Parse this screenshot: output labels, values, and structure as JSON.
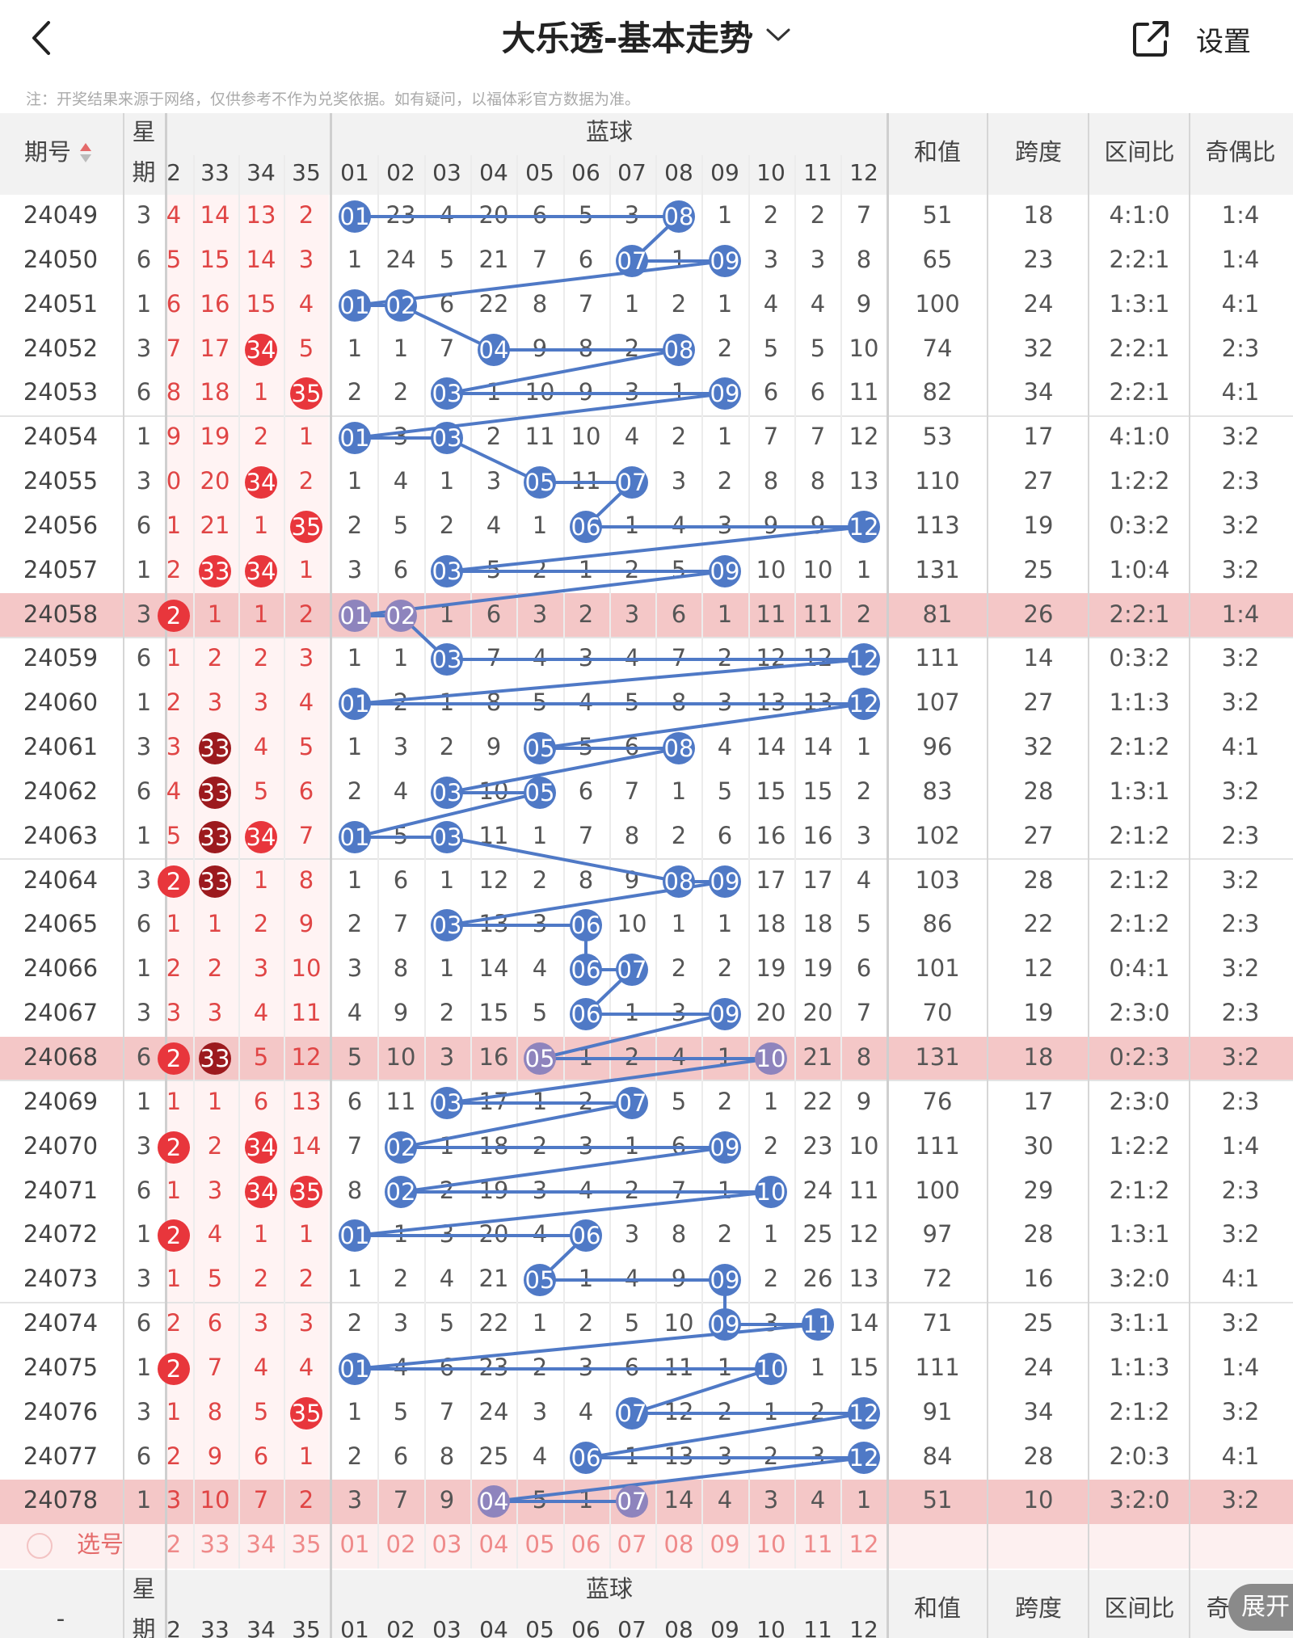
{
  "header": {
    "back_label": "back",
    "title": "大乐透-基本走势",
    "share_icon": "share-icon",
    "settings_label": "设置"
  },
  "notice": "注：开奖结果来源于网络，仅供参考不作为兑奖依据。如有疑问，以福体彩官方数据为准。",
  "table_header": {
    "issue": "期号",
    "week": [
      "星",
      "期"
    ],
    "blue_group": "蓝球",
    "front_cols": [
      "2",
      "33",
      "34",
      "35"
    ],
    "blue_cols": [
      "01",
      "02",
      "03",
      "04",
      "05",
      "06",
      "07",
      "08",
      "09",
      "10",
      "11",
      "12"
    ],
    "sum": "和值",
    "span": "跨度",
    "zone_ratio": "区间比",
    "odd_even": "奇偶比"
  },
  "colors": {
    "red_ball": "#e8363c",
    "dark_red_ball": "#9c1a1e",
    "blue_ball": "#4f79c6",
    "highlight_row": "#f3c4c4",
    "line": "#4f79c6"
  },
  "rows": [
    {
      "issue": "24049",
      "week": "3",
      "front": [
        "4",
        "14",
        "13",
        "2"
      ],
      "fhit": [],
      "blue": [
        "01",
        "23",
        "4",
        "20",
        "6",
        "5",
        "3",
        "08",
        "1",
        "2",
        "2",
        "7"
      ],
      "bhit": [
        0,
        7
      ],
      "sum": "51",
      "span": "18",
      "zone": "4:1:0",
      "oe": "1:4",
      "hl": false
    },
    {
      "issue": "24050",
      "week": "6",
      "front": [
        "5",
        "15",
        "14",
        "3"
      ],
      "fhit": [],
      "blue": [
        "1",
        "24",
        "5",
        "21",
        "7",
        "6",
        "07",
        "1",
        "09",
        "3",
        "3",
        "8"
      ],
      "bhit": [
        6,
        8
      ],
      "sum": "65",
      "span": "23",
      "zone": "2:2:1",
      "oe": "1:4",
      "hl": false
    },
    {
      "issue": "24051",
      "week": "1",
      "front": [
        "6",
        "16",
        "15",
        "4"
      ],
      "fhit": [],
      "blue": [
        "01",
        "02",
        "6",
        "22",
        "8",
        "7",
        "1",
        "2",
        "1",
        "4",
        "4",
        "9"
      ],
      "bhit": [
        0,
        1
      ],
      "sum": "100",
      "span": "24",
      "zone": "1:3:1",
      "oe": "4:1",
      "hl": false
    },
    {
      "issue": "24052",
      "week": "3",
      "front": [
        "7",
        "17",
        "34",
        "5"
      ],
      "fhit": [
        2
      ],
      "blue": [
        "1",
        "1",
        "7",
        "04",
        "9",
        "8",
        "2",
        "08",
        "2",
        "5",
        "5",
        "10"
      ],
      "bhit": [
        3,
        7
      ],
      "sum": "74",
      "span": "32",
      "zone": "2:2:1",
      "oe": "2:3",
      "hl": false
    },
    {
      "issue": "24053",
      "week": "6",
      "front": [
        "8",
        "18",
        "1",
        "35"
      ],
      "fhit": [
        3
      ],
      "blue": [
        "2",
        "2",
        "03",
        "1",
        "10",
        "9",
        "3",
        "1",
        "09",
        "6",
        "6",
        "11"
      ],
      "bhit": [
        2,
        8
      ],
      "sum": "82",
      "span": "34",
      "zone": "2:2:1",
      "oe": "4:1",
      "hl": false
    },
    {
      "issue": "24054",
      "week": "1",
      "front": [
        "9",
        "19",
        "2",
        "1"
      ],
      "fhit": [],
      "blue": [
        "01",
        "3",
        "03",
        "2",
        "11",
        "10",
        "4",
        "2",
        "1",
        "7",
        "7",
        "12"
      ],
      "bhit": [
        0,
        2
      ],
      "sum": "53",
      "span": "17",
      "zone": "4:1:0",
      "oe": "3:2",
      "hl": false
    },
    {
      "issue": "24055",
      "week": "3",
      "front": [
        "0",
        "20",
        "34",
        "2"
      ],
      "fhit": [
        2
      ],
      "blue": [
        "1",
        "4",
        "1",
        "3",
        "05",
        "11",
        "07",
        "3",
        "2",
        "8",
        "8",
        "13"
      ],
      "bhit": [
        4,
        6
      ],
      "sum": "110",
      "span": "27",
      "zone": "1:2:2",
      "oe": "2:3",
      "hl": false
    },
    {
      "issue": "24056",
      "week": "6",
      "front": [
        "1",
        "21",
        "1",
        "35"
      ],
      "fhit": [
        3
      ],
      "blue": [
        "2",
        "5",
        "2",
        "4",
        "1",
        "06",
        "1",
        "4",
        "3",
        "9",
        "9",
        "12"
      ],
      "bhit": [
        5,
        11
      ],
      "sum": "113",
      "span": "19",
      "zone": "0:3:2",
      "oe": "3:2",
      "hl": false
    },
    {
      "issue": "24057",
      "week": "1",
      "front": [
        "2",
        "33",
        "34",
        "1"
      ],
      "fhit": [
        1,
        2
      ],
      "blue": [
        "3",
        "6",
        "03",
        "5",
        "2",
        "1",
        "2",
        "5",
        "09",
        "10",
        "10",
        "1"
      ],
      "bhit": [
        2,
        8
      ],
      "sum": "131",
      "span": "25",
      "zone": "1:0:4",
      "oe": "3:2",
      "hl": false
    },
    {
      "issue": "24058",
      "week": "3",
      "front": [
        "2",
        "1",
        "1",
        "2"
      ],
      "fhit": [
        0
      ],
      "blue": [
        "01",
        "02",
        "1",
        "6",
        "3",
        "2",
        "3",
        "6",
        "1",
        "11",
        "11",
        "2"
      ],
      "bhit": [
        0,
        1
      ],
      "sum": "81",
      "span": "26",
      "zone": "2:2:1",
      "oe": "1:4",
      "hl": true
    },
    {
      "issue": "24059",
      "week": "6",
      "front": [
        "1",
        "2",
        "2",
        "3"
      ],
      "fhit": [],
      "blue": [
        "1",
        "1",
        "03",
        "7",
        "4",
        "3",
        "4",
        "7",
        "2",
        "12",
        "12",
        "12"
      ],
      "bhit": [
        2,
        11
      ],
      "sum": "111",
      "span": "14",
      "zone": "0:3:2",
      "oe": "3:2",
      "hl": false
    },
    {
      "issue": "24060",
      "week": "1",
      "front": [
        "2",
        "3",
        "3",
        "4"
      ],
      "fhit": [],
      "blue": [
        "01",
        "2",
        "1",
        "8",
        "5",
        "4",
        "5",
        "8",
        "3",
        "13",
        "13",
        "12"
      ],
      "bhit": [
        0,
        11
      ],
      "sum": "107",
      "span": "27",
      "zone": "1:1:3",
      "oe": "3:2",
      "hl": false
    },
    {
      "issue": "24061",
      "week": "3",
      "front": [
        "3",
        "33",
        "4",
        "5"
      ],
      "fhit": [
        1
      ],
      "fdark": [
        1
      ],
      "blue": [
        "1",
        "3",
        "2",
        "9",
        "05",
        "5",
        "6",
        "08",
        "4",
        "14",
        "14",
        "1"
      ],
      "bhit": [
        4,
        7
      ],
      "sum": "96",
      "span": "32",
      "zone": "2:1:2",
      "oe": "4:1",
      "hl": false
    },
    {
      "issue": "24062",
      "week": "6",
      "front": [
        "4",
        "33",
        "5",
        "6"
      ],
      "fhit": [
        1
      ],
      "fdark": [
        1
      ],
      "blue": [
        "2",
        "4",
        "03",
        "10",
        "05",
        "6",
        "7",
        "1",
        "5",
        "15",
        "15",
        "2"
      ],
      "bhit": [
        2,
        4
      ],
      "sum": "83",
      "span": "28",
      "zone": "1:3:1",
      "oe": "3:2",
      "hl": false
    },
    {
      "issue": "24063",
      "week": "1",
      "front": [
        "5",
        "33",
        "34",
        "7"
      ],
      "fhit": [
        1,
        2
      ],
      "fdark": [
        1
      ],
      "blue": [
        "01",
        "5",
        "03",
        "11",
        "1",
        "7",
        "8",
        "2",
        "6",
        "16",
        "16",
        "3"
      ],
      "bhit": [
        0,
        2
      ],
      "sum": "102",
      "span": "27",
      "zone": "2:1:2",
      "oe": "2:3",
      "hl": false
    },
    {
      "issue": "24064",
      "week": "3",
      "front": [
        "2",
        "33",
        "1",
        "8"
      ],
      "fhit": [
        0,
        1
      ],
      "fdark": [
        1
      ],
      "blue": [
        "1",
        "6",
        "1",
        "12",
        "2",
        "8",
        "9",
        "08",
        "09",
        "17",
        "17",
        "4"
      ],
      "bhit": [
        7,
        8
      ],
      "sum": "103",
      "span": "28",
      "zone": "2:1:2",
      "oe": "3:2",
      "hl": false
    },
    {
      "issue": "24065",
      "week": "6",
      "front": [
        "1",
        "1",
        "2",
        "9"
      ],
      "fhit": [],
      "blue": [
        "2",
        "7",
        "03",
        "13",
        "3",
        "06",
        "10",
        "1",
        "1",
        "18",
        "18",
        "5"
      ],
      "bhit": [
        2,
        5
      ],
      "sum": "86",
      "span": "22",
      "zone": "2:1:2",
      "oe": "2:3",
      "hl": false
    },
    {
      "issue": "24066",
      "week": "1",
      "front": [
        "2",
        "2",
        "3",
        "10"
      ],
      "fhit": [],
      "blue": [
        "3",
        "8",
        "1",
        "14",
        "4",
        "06",
        "07",
        "2",
        "2",
        "19",
        "19",
        "6"
      ],
      "bhit": [
        5,
        6
      ],
      "sum": "101",
      "span": "12",
      "zone": "0:4:1",
      "oe": "3:2",
      "hl": false
    },
    {
      "issue": "24067",
      "week": "3",
      "front": [
        "3",
        "3",
        "4",
        "11"
      ],
      "fhit": [],
      "blue": [
        "4",
        "9",
        "2",
        "15",
        "5",
        "06",
        "1",
        "3",
        "09",
        "20",
        "20",
        "7"
      ],
      "bhit": [
        5,
        8
      ],
      "sum": "70",
      "span": "19",
      "zone": "2:3:0",
      "oe": "2:3",
      "hl": false
    },
    {
      "issue": "24068",
      "week": "6",
      "front": [
        "2",
        "33",
        "5",
        "12"
      ],
      "fhit": [
        0,
        1
      ],
      "fdark": [
        1
      ],
      "blue": [
        "5",
        "10",
        "3",
        "16",
        "05",
        "1",
        "2",
        "4",
        "1",
        "10",
        "21",
        "8"
      ],
      "bhit": [
        4,
        9
      ],
      "sum": "131",
      "span": "18",
      "zone": "0:2:3",
      "oe": "3:2",
      "hl": true
    },
    {
      "issue": "24069",
      "week": "1",
      "front": [
        "1",
        "1",
        "6",
        "13"
      ],
      "fhit": [],
      "blue": [
        "6",
        "11",
        "03",
        "17",
        "1",
        "2",
        "07",
        "5",
        "2",
        "1",
        "22",
        "9"
      ],
      "bhit": [
        2,
        6
      ],
      "sum": "76",
      "span": "17",
      "zone": "2:3:0",
      "oe": "2:3",
      "hl": false
    },
    {
      "issue": "24070",
      "week": "3",
      "front": [
        "2",
        "2",
        "34",
        "14"
      ],
      "fhit": [
        0,
        2
      ],
      "blue": [
        "7",
        "02",
        "1",
        "18",
        "2",
        "3",
        "1",
        "6",
        "09",
        "2",
        "23",
        "10"
      ],
      "bhit": [
        1,
        8
      ],
      "sum": "111",
      "span": "30",
      "zone": "1:2:2",
      "oe": "1:4",
      "hl": false
    },
    {
      "issue": "24071",
      "week": "6",
      "front": [
        "1",
        "3",
        "34",
        "35"
      ],
      "fhit": [
        2,
        3
      ],
      "blue": [
        "8",
        "02",
        "2",
        "19",
        "3",
        "4",
        "2",
        "7",
        "1",
        "10",
        "24",
        "11"
      ],
      "bhit": [
        1,
        9
      ],
      "sum": "100",
      "span": "29",
      "zone": "2:1:2",
      "oe": "2:3",
      "hl": false
    },
    {
      "issue": "24072",
      "week": "1",
      "front": [
        "2",
        "4",
        "1",
        "1"
      ],
      "fhit": [
        0
      ],
      "blue": [
        "01",
        "1",
        "3",
        "20",
        "4",
        "06",
        "3",
        "8",
        "2",
        "1",
        "25",
        "12"
      ],
      "bhit": [
        0,
        5
      ],
      "sum": "97",
      "span": "28",
      "zone": "1:3:1",
      "oe": "3:2",
      "hl": false
    },
    {
      "issue": "24073",
      "week": "3",
      "front": [
        "1",
        "5",
        "2",
        "2"
      ],
      "fhit": [],
      "blue": [
        "1",
        "2",
        "4",
        "21",
        "05",
        "1",
        "4",
        "9",
        "09",
        "2",
        "26",
        "13"
      ],
      "bhit": [
        4,
        8
      ],
      "sum": "72",
      "span": "16",
      "zone": "3:2:0",
      "oe": "4:1",
      "hl": false
    },
    {
      "issue": "24074",
      "week": "6",
      "front": [
        "2",
        "6",
        "3",
        "3"
      ],
      "fhit": [],
      "blue": [
        "2",
        "3",
        "5",
        "22",
        "1",
        "2",
        "5",
        "10",
        "09",
        "3",
        "11",
        "14"
      ],
      "bhit": [
        8,
        10
      ],
      "sum": "71",
      "span": "25",
      "zone": "3:1:1",
      "oe": "3:2",
      "hl": false
    },
    {
      "issue": "24075",
      "week": "1",
      "front": [
        "2",
        "7",
        "4",
        "4"
      ],
      "fhit": [
        0
      ],
      "blue": [
        "01",
        "4",
        "6",
        "23",
        "2",
        "3",
        "6",
        "11",
        "1",
        "10",
        "1",
        "15"
      ],
      "bhit": [
        0,
        9
      ],
      "sum": "111",
      "span": "24",
      "zone": "1:1:3",
      "oe": "1:4",
      "hl": false
    },
    {
      "issue": "24076",
      "week": "3",
      "front": [
        "1",
        "8",
        "5",
        "35"
      ],
      "fhit": [
        3
      ],
      "blue": [
        "1",
        "5",
        "7",
        "24",
        "3",
        "4",
        "07",
        "12",
        "2",
        "1",
        "2",
        "12"
      ],
      "bhit": [
        6,
        11
      ],
      "sum": "91",
      "span": "34",
      "zone": "2:1:2",
      "oe": "3:2",
      "hl": false
    },
    {
      "issue": "24077",
      "week": "6",
      "front": [
        "2",
        "9",
        "6",
        "1"
      ],
      "fhit": [],
      "blue": [
        "2",
        "6",
        "8",
        "25",
        "4",
        "06",
        "1",
        "13",
        "3",
        "2",
        "3",
        "12"
      ],
      "bhit": [
        5,
        11
      ],
      "sum": "84",
      "span": "28",
      "zone": "2:0:3",
      "oe": "4:1",
      "hl": false
    },
    {
      "issue": "24078",
      "week": "1",
      "front": [
        "3",
        "10",
        "7",
        "2"
      ],
      "fhit": [],
      "blue": [
        "3",
        "7",
        "9",
        "04",
        "5",
        "1",
        "07",
        "14",
        "4",
        "3",
        "4",
        "1"
      ],
      "bhit": [
        3,
        6
      ],
      "sum": "51",
      "span": "10",
      "zone": "3:2:0",
      "oe": "3:2",
      "hl": true
    }
  ],
  "select_row": {
    "label": "选号",
    "front": [
      "2",
      "33",
      "34",
      "35"
    ],
    "blue": [
      "01",
      "02",
      "03",
      "04",
      "05",
      "06",
      "07",
      "08",
      "09",
      "10",
      "11",
      "12"
    ]
  },
  "footer_header": {
    "issue": "-",
    "week": [
      "星",
      "期"
    ],
    "blue_group": "蓝球",
    "sum": "和值",
    "span": "跨度",
    "zone_ratio": "区间比",
    "odd_even": "奇"
  },
  "expand_label": "展开"
}
